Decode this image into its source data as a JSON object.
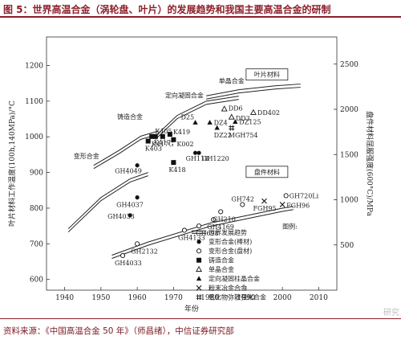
{
  "header": {
    "title": "图 5：世界高温合金（涡轮盘、叶片）的发展趋势和我国主要高温合金的研制"
  },
  "footer": {
    "source": "资料来源：《中国高温合金 50 年》（师昌绪），中信证券研究部"
  },
  "watermark": "研究",
  "chart_data": {
    "type": "scatter",
    "xlabel": "年份",
    "ylabel_left": "叶片材料工作温度(100h,140MPa)/°C",
    "ylabel_right": "盘件材料屈服强度(600°C)/MPa",
    "xlim": [
      1935,
      2015
    ],
    "ylim_left": [
      570,
      1280
    ],
    "ylim_right": [
      0,
      2800
    ],
    "x_ticks": [
      1940,
      1950,
      1960,
      1970,
      1980,
      1990,
      2000,
      2010
    ],
    "y_left_ticks": [
      600,
      700,
      800,
      900,
      1000,
      1100,
      1200
    ],
    "y_right_ticks": [
      500,
      1000,
      1500,
      2000,
      2500
    ],
    "grid": false,
    "boxed_labels": [
      "叶片材料",
      "盘件材料"
    ],
    "trend_labels": [
      "单晶合金",
      "定向凝固合金",
      "铸造合金",
      "变形合金"
    ],
    "series": [
      {
        "name": "世界发展趋势",
        "marker": "trend",
        "points": []
      },
      {
        "name": "变形合金(棒材)",
        "marker": "filled-circle",
        "points": [
          {
            "x": 1958,
            "y": 780,
            "label": "GH4033"
          },
          {
            "x": 1960,
            "y": 830,
            "label": "GH4037"
          },
          {
            "x": 1960,
            "y": 920,
            "label": "GH4049"
          },
          {
            "x": 1976,
            "y": 955,
            "label": "GH118"
          },
          {
            "x": 1977,
            "y": 955,
            "label": "GH1220"
          }
        ]
      },
      {
        "name": "变形合金(盘材)",
        "marker": "open-circle",
        "points": [
          {
            "x": 1956,
            "y": 667,
            "label": "GH4033"
          },
          {
            "x": 1960,
            "y": 700,
            "label": "GH2132"
          },
          {
            "x": 1973,
            "y": 738,
            "label": "GH4133"
          },
          {
            "x": 1977,
            "y": 750,
            "label": "GH698"
          },
          {
            "x": 1981,
            "y": 768,
            "label": "GH4169"
          },
          {
            "x": 1983,
            "y": 790,
            "label": "GH210"
          },
          {
            "x": 1989,
            "y": 810,
            "label": "GH742"
          },
          {
            "x": 2001,
            "y": 835,
            "label": "GH720Li"
          }
        ]
      },
      {
        "name": "铸造合金",
        "marker": "filled-square",
        "points": [
          {
            "x": 1963,
            "y": 988,
            "label": "K403"
          },
          {
            "x": 1964,
            "y": 1001,
            "label": "K405"
          },
          {
            "x": 1965,
            "y": 1001,
            "label": "K417"
          },
          {
            "x": 1967,
            "y": 1001,
            "label": "K417G"
          },
          {
            "x": 1969,
            "y": 1007,
            "label": "K419"
          },
          {
            "x": 1970,
            "y": 992,
            "label": "K002"
          },
          {
            "x": 1970,
            "y": 928,
            "label": "K418"
          }
        ]
      },
      {
        "name": "单晶合金",
        "marker": "open-triangle",
        "points": [
          {
            "x": 1984,
            "y": 1078,
            "label": "DD6"
          },
          {
            "x": 1986,
            "y": 1055,
            "label": "DD3"
          },
          {
            "x": 1992,
            "y": 1068,
            "label": "DD402"
          }
        ]
      },
      {
        "name": "定向凝固柱晶合金",
        "marker": "filled-triangle",
        "points": [
          {
            "x": 1976,
            "y": 1040,
            "label": "D25"
          },
          {
            "x": 1980,
            "y": 1040,
            "label": "DZ4"
          },
          {
            "x": 1982,
            "y": 1025,
            "label": "DZ22"
          },
          {
            "x": 1987,
            "y": 1042,
            "label": "DZ125"
          }
        ]
      },
      {
        "name": "粉末冶金合金",
        "marker": "cross",
        "points": [
          {
            "x": 1995,
            "y": 820,
            "label": "FGH95"
          },
          {
            "x": 2000,
            "y": 810,
            "label": "FGH96"
          }
        ]
      },
      {
        "name": "氧化物弥散强化合金",
        "marker": "hash",
        "points": [
          {
            "x": 1986,
            "y": 1025,
            "label": "MGH754"
          }
        ]
      }
    ],
    "legend": {
      "title": "图例:",
      "items": [
        {
          "label": "世界发展趋势",
          "marker": "trend"
        },
        {
          "label": "变形合金(棒材)",
          "marker": "filled-circle"
        },
        {
          "label": "变形合金(盘材)",
          "marker": "open-circle"
        },
        {
          "label": "铸造合金",
          "marker": "filled-square"
        },
        {
          "label": "单晶合金",
          "marker": "open-triangle"
        },
        {
          "label": "定向凝固柱晶合金",
          "marker": "filled-triangle"
        },
        {
          "label": "粉末冶金合金",
          "marker": "cross"
        },
        {
          "label": "氧化物弥散强化合金",
          "marker": "hash"
        }
      ]
    }
  }
}
